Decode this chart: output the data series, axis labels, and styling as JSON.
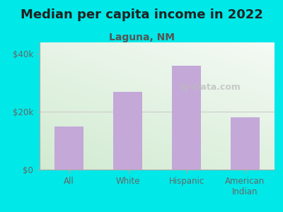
{
  "title": "Median per capita income in 2022",
  "subtitle": "Laguna, NM",
  "categories": [
    "All",
    "White",
    "Hispanic",
    "American\nIndian"
  ],
  "values": [
    15000,
    27000,
    36000,
    18000
  ],
  "bar_color": "#c4a8d8",
  "background_color": "#00e8e8",
  "title_fontsize": 13,
  "subtitle_fontsize": 10,
  "subtitle_color": "#555555",
  "ytick_labels": [
    "$0",
    "$20k",
    "$40k"
  ],
  "ytick_values": [
    0,
    20000,
    40000
  ],
  "ylim": [
    0,
    44000
  ],
  "watermark": "ty-Data.com",
  "tick_color": "#666666",
  "gradient_top_left": "#d6eecf",
  "gradient_bottom_right": "#eef5f8"
}
